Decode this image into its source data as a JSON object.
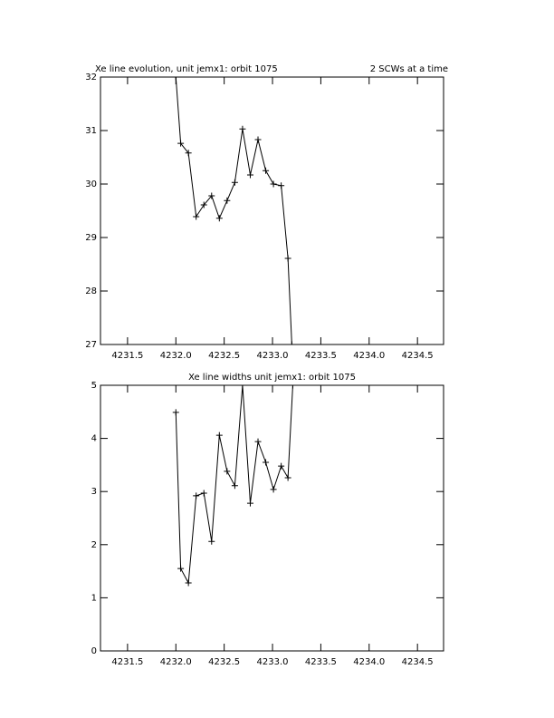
{
  "chart_data": [
    {
      "type": "line",
      "title": "Xe line evolution, unit jemx1: orbit 1075",
      "annotation": "2 SCWs at a time",
      "x": [
        4232.0,
        4232.05,
        4232.13,
        4232.21,
        4232.29,
        4232.37,
        4232.45,
        4232.53,
        4232.61,
        4232.69,
        4232.77,
        4232.85,
        4232.93,
        4233.01,
        4233.09,
        4233.16,
        4233.2
      ],
      "values": [
        32.0,
        30.76,
        30.58,
        29.39,
        29.61,
        29.78,
        29.36,
        29.69,
        30.03,
        31.03,
        30.17,
        30.83,
        30.25,
        30.0,
        29.97,
        28.61,
        27.0
      ],
      "color": "#000000",
      "xlim": [
        4231.22,
        4234.77
      ],
      "xticks": [
        4231.5,
        {
          "value": 4232.0,
          "label": "4232.0"
        },
        4232.5,
        {
          "value": 4233.0,
          "label": "4233.0"
        },
        4233.5,
        {
          "value": 4234.0,
          "label": "4234.0"
        },
        4234.5
      ],
      "ylim": [
        27,
        32
      ],
      "yticks": [
        27,
        28,
        29,
        30,
        31,
        32
      ]
    },
    {
      "type": "line",
      "title": "Xe line widths unit jemx1: orbit 1075",
      "x": [
        4232.0,
        4232.05,
        4232.13,
        4232.21,
        4232.29,
        4232.37,
        4232.45,
        4232.53,
        4232.61,
        4232.69,
        4232.77,
        4232.85,
        4232.93,
        4233.01,
        4233.09,
        4233.16,
        4233.21
      ],
      "values": [
        4.49,
        1.55,
        1.28,
        2.92,
        2.97,
        2.06,
        4.06,
        3.38,
        3.11,
        5.0,
        2.78,
        3.94,
        3.55,
        3.04,
        3.48,
        3.26,
        5.0
      ],
      "color": "#000000",
      "xlim": [
        4231.22,
        4234.77
      ],
      "xticks": [
        4231.5,
        {
          "value": 4232.0,
          "label": "4232.0"
        },
        4232.5,
        {
          "value": 4233.0,
          "label": "4233.0"
        },
        4233.5,
        {
          "value": 4234.0,
          "label": "4234.0"
        },
        4234.5
      ],
      "ylim": [
        0,
        5
      ],
      "yticks": [
        0,
        1,
        2,
        3,
        4,
        5
      ]
    }
  ]
}
